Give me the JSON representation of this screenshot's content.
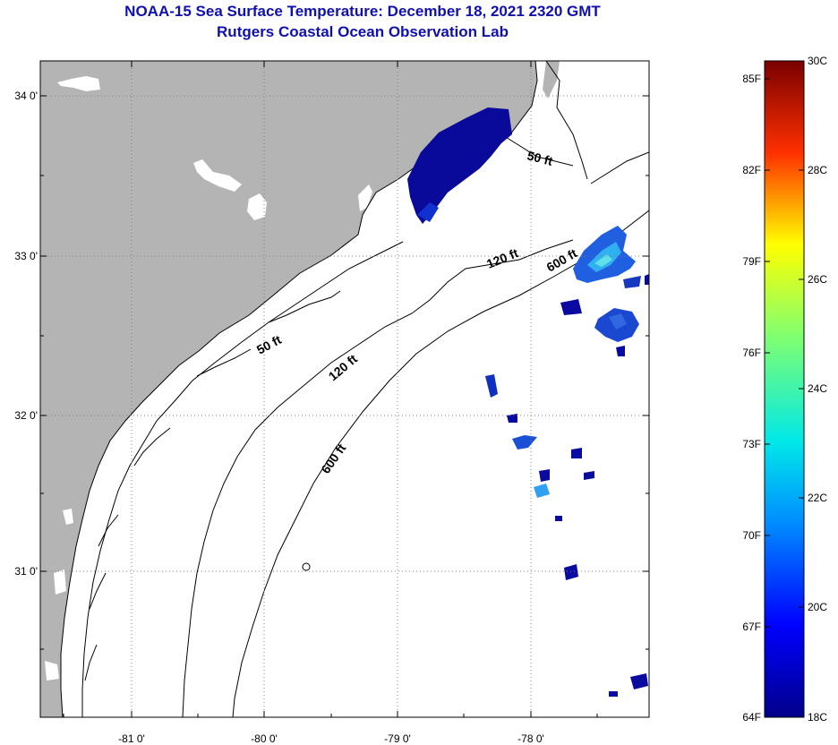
{
  "title": {
    "line1": "NOAA-15 Sea Surface Temperature:  December 18, 2021 2320 GMT",
    "line2": "Rutgers Coastal Ocean Observation Lab"
  },
  "map": {
    "lat_labels": [
      "34 0'",
      "33 0'",
      "32 0'",
      "31 0'"
    ],
    "lon_labels": [
      "-81 0'",
      "-80 0'",
      "-79 0'",
      "-78 0'"
    ],
    "contour_labels": [
      "50 ft",
      "120 ft",
      "600 ft",
      "50 ft",
      "120 ft",
      "600 ft"
    ],
    "colors": {
      "land": "#b4b4b4",
      "ocean": "#ffffff",
      "grid": "#808080"
    }
  },
  "colorbar": {
    "fahrenheit_labels": [
      "85F",
      "82F",
      "79F",
      "76F",
      "73F",
      "70F",
      "67F",
      "64F"
    ],
    "celsius_labels": [
      "30C",
      "28C",
      "26C",
      "24C",
      "22C",
      "20C",
      "18C"
    ],
    "range_c": [
      18,
      30
    ]
  }
}
